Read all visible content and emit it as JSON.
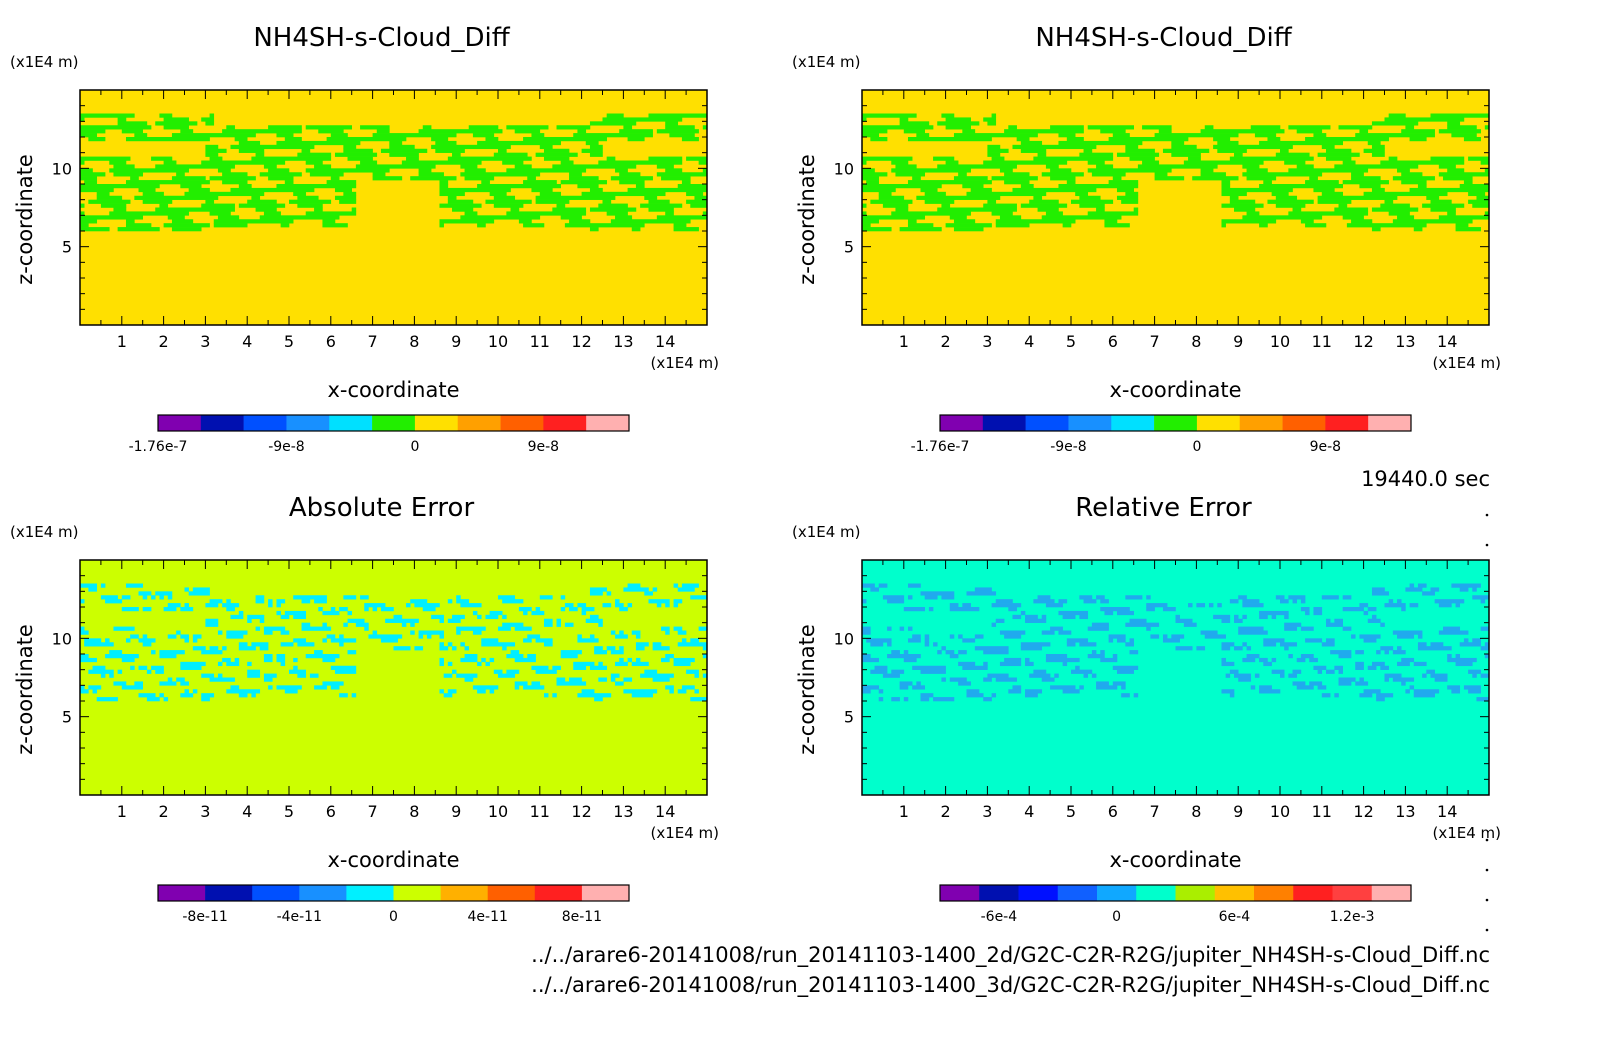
{
  "figure": {
    "time_label": "19440.0 sec",
    "file_paths": [
      "../../arare6-20141008/run_20141103-1400_2d/G2C-C2R-R2G/jupiter_NH4SH-s-Cloud_Diff.nc",
      "../../arare6-20141008/run_20141103-1400_3d/G2C-C2R-R2G/jupiter_NH4SH-s-Cloud_Diff.nc"
    ]
  },
  "chart_data": [
    {
      "type": "heatmap",
      "title": "NH4SH-s-Cloud_Diff",
      "xlabel": "x-coordinate",
      "ylabel": "z-coordinate",
      "x_unit": "(x1E4 m)",
      "y_unit": "(x1E4 m)",
      "xlim": [
        0,
        15
      ],
      "ylim": [
        0,
        15
      ],
      "xticks": [
        "1",
        "2",
        "3",
        "4",
        "5",
        "6",
        "7",
        "8",
        "9",
        "10",
        "11",
        "12",
        "13",
        "14"
      ],
      "yticks": [
        "5",
        "10"
      ],
      "background_color": "#ffe000",
      "feature_color": "#22ee00",
      "colorbar": {
        "colors": [
          "#8000b0",
          "#0010b0",
          "#0050ff",
          "#1890ff",
          "#00e0ff",
          "#22ee00",
          "#ffe000",
          "#ffa000",
          "#ff6000",
          "#ff2020",
          "#ffb0b0"
        ],
        "tick_labels": [
          "-1.76e-7",
          "-9e-8",
          "0",
          "9e-8"
        ],
        "tick_positions": [
          0,
          3,
          6,
          9
        ]
      }
    },
    {
      "type": "heatmap",
      "title": "NH4SH-s-Cloud_Diff",
      "xlabel": "x-coordinate",
      "ylabel": "z-coordinate",
      "x_unit": "(x1E4 m)",
      "y_unit": "(x1E4 m)",
      "xlim": [
        0,
        15
      ],
      "ylim": [
        0,
        15
      ],
      "xticks": [
        "1",
        "2",
        "3",
        "4",
        "5",
        "6",
        "7",
        "8",
        "9",
        "10",
        "11",
        "12",
        "13",
        "14"
      ],
      "yticks": [
        "5",
        "10"
      ],
      "background_color": "#ffe000",
      "feature_color": "#22ee00",
      "colorbar": {
        "colors": [
          "#8000b0",
          "#0010b0",
          "#0050ff",
          "#1890ff",
          "#00e0ff",
          "#22ee00",
          "#ffe000",
          "#ffa000",
          "#ff6000",
          "#ff2020",
          "#ffb0b0"
        ],
        "tick_labels": [
          "-1.76e-7",
          "-9e-8",
          "0",
          "9e-8"
        ],
        "tick_positions": [
          0,
          3,
          6,
          9
        ]
      }
    },
    {
      "type": "heatmap",
      "title": "Absolute Error",
      "xlabel": "x-coordinate",
      "ylabel": "z-coordinate",
      "x_unit": "(x1E4 m)",
      "y_unit": "(x1E4 m)",
      "xlim": [
        0,
        15
      ],
      "ylim": [
        0,
        15
      ],
      "xticks": [
        "1",
        "2",
        "3",
        "4",
        "5",
        "6",
        "7",
        "8",
        "9",
        "10",
        "11",
        "12",
        "13",
        "14"
      ],
      "yticks": [
        "5",
        "10"
      ],
      "background_color": "#ccff00",
      "feature_color": "#00eeff",
      "colorbar": {
        "colors": [
          "#8000b0",
          "#0010b0",
          "#0050ff",
          "#1890ff",
          "#00f0ff",
          "#ccff00",
          "#ffb000",
          "#ff6000",
          "#ff2020",
          "#ffb0b0"
        ],
        "tick_labels": [
          "-8e-11",
          "-4e-11",
          "0",
          "4e-11",
          "8e-11"
        ],
        "tick_positions": [
          1,
          3,
          5,
          7,
          9
        ]
      }
    },
    {
      "type": "heatmap",
      "title": "Relative Error",
      "xlabel": "x-coordinate",
      "ylabel": "z-coordinate",
      "x_unit": "(x1E4 m)",
      "y_unit": "(x1E4 m)",
      "xlim": [
        0,
        15
      ],
      "ylim": [
        0,
        15
      ],
      "xticks": [
        "1",
        "2",
        "3",
        "4",
        "5",
        "6",
        "7",
        "8",
        "9",
        "10",
        "11",
        "12",
        "13",
        "14"
      ],
      "yticks": [
        "5",
        "10"
      ],
      "background_color": "#00ffcc",
      "feature_color": "#20aaee",
      "colorbar": {
        "colors": [
          "#8000b0",
          "#0010b0",
          "#0010ff",
          "#1060ff",
          "#10a8ff",
          "#00ffcc",
          "#aaee00",
          "#ffc000",
          "#ff8000",
          "#ff2020",
          "#ff4040",
          "#ffb0b0"
        ],
        "tick_labels": [
          "-6e-4",
          "0",
          "6e-4",
          "1.2e-3"
        ],
        "tick_positions": [
          1.5,
          4.5,
          7.5,
          10.5
        ]
      }
    }
  ]
}
